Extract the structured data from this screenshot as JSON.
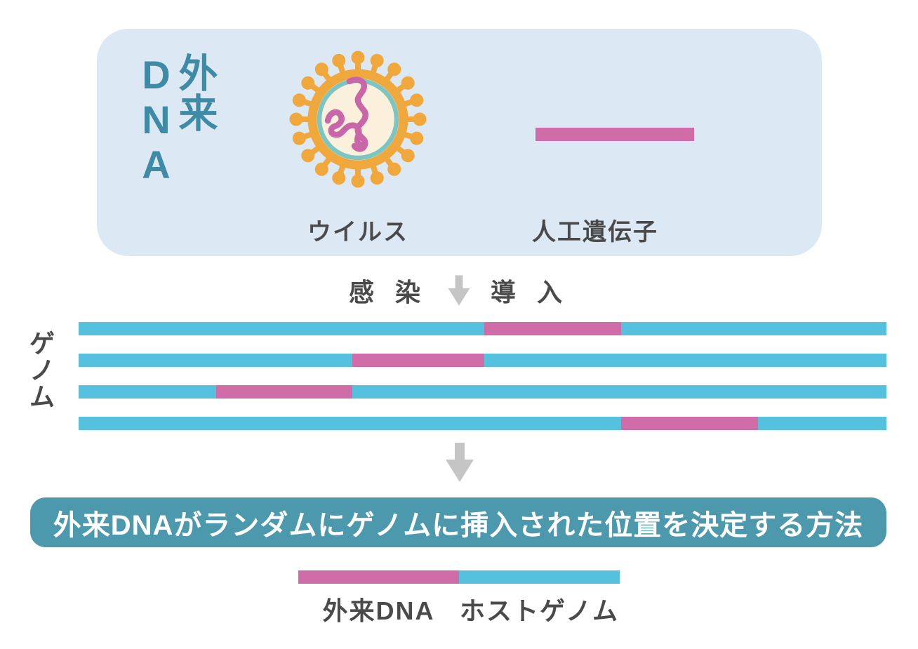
{
  "colors": {
    "panel_bg": "#dce9f4",
    "title_teal": "#3f8ba6",
    "bar_blue": "#56c1df",
    "bar_pink": "#d06ca8",
    "banner_bg": "#4c98ad",
    "banner_text": "#ffffff",
    "text_dark": "#4a4a4a",
    "arrow_gray": "#c5c5c5",
    "virus_orange": "#f0a83c",
    "virus_teal": "#7cc5c3",
    "virus_inner": "#faf0dc",
    "virus_squiggle": "#c966a8"
  },
  "foreign_dna_panel": {
    "title_vertical": "外来DNA",
    "virus_label": "ウイルス",
    "gene_label": "人工遺伝子"
  },
  "process_row": {
    "infection_label": "感 染",
    "introduction_label": "導 入"
  },
  "genome_section": {
    "label_vertical": "ゲノム",
    "bars": [
      {
        "insert_left_pct": 50.2,
        "insert_width_pct": 17.0
      },
      {
        "insert_left_pct": 33.9,
        "insert_width_pct": 16.3
      },
      {
        "insert_left_pct": 17.0,
        "insert_width_pct": 16.9
      },
      {
        "insert_left_pct": 67.2,
        "insert_width_pct": 16.9
      }
    ]
  },
  "banner": {
    "text": "外来DNAがランダムにゲノムに挿入された位置を決定する方法"
  },
  "legend": {
    "items": [
      {
        "label": "外来DNA",
        "color": "#d06ca8",
        "width_pct": 50
      },
      {
        "label": "ホストゲノム",
        "color": "#56c1df",
        "width_pct": 50
      }
    ]
  }
}
